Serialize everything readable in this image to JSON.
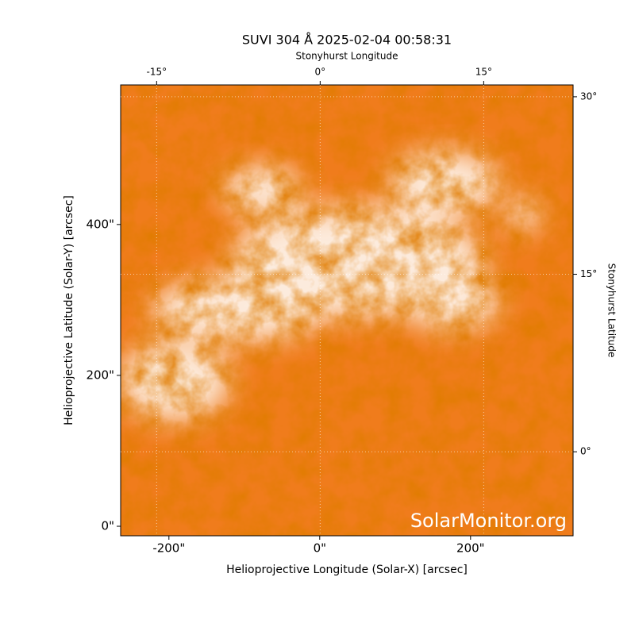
{
  "chart_data": {
    "type": "image",
    "title": "SUVI 304 Å 2025-02-04 00:58:31",
    "x_label": "Helioprojective Longitude (Solar-X) [arcsec]",
    "y_label": "Helioprojective Latitude (Solar-Y) [arcsec]",
    "x2_label": "Stonyhurst Longitude",
    "y2_label": "Stonyhurst Latitude",
    "watermark": "SolarMonitor.org",
    "xlim": [
      -264,
      336
    ],
    "ylim": [
      -12.6,
      585
    ],
    "xticks": [
      {
        "value": -200,
        "label": "-200\""
      },
      {
        "value": 0,
        "label": "0\""
      },
      {
        "value": 200,
        "label": "200\""
      }
    ],
    "yticks": [
      {
        "value": 0,
        "label": "0\""
      },
      {
        "value": 200,
        "label": "200\""
      },
      {
        "value": 400,
        "label": "400\""
      }
    ],
    "x2lim": [
      -18.3,
      23.2
    ],
    "x2ticks": [
      {
        "value": -15,
        "label": "-15°"
      },
      {
        "value": 0,
        "label": "0°"
      },
      {
        "value": 15,
        "label": "15°"
      }
    ],
    "y2lim": [
      -7.1,
      31.0
    ],
    "y2ticks": [
      {
        "value": 0,
        "label": "0°"
      },
      {
        "value": 15,
        "label": "15°"
      },
      {
        "value": 30,
        "label": "30°"
      }
    ],
    "grid": true
  }
}
